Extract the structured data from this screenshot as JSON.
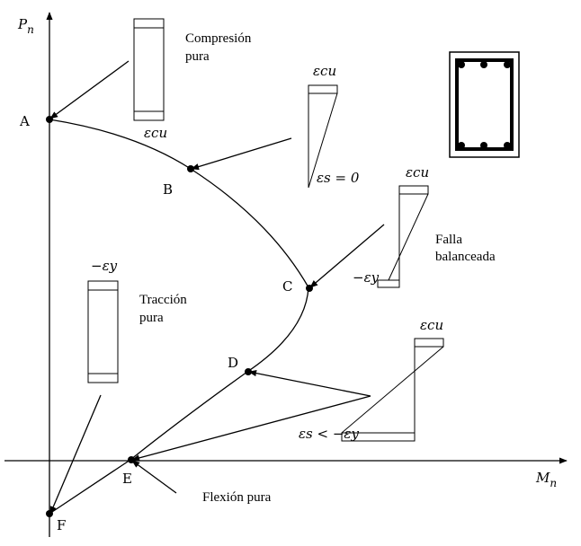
{
  "axes": {
    "y_label": "P",
    "y_sub": "n",
    "x_label": "M",
    "x_sub": "n"
  },
  "points": {
    "A": "A",
    "B": "B",
    "C": "C",
    "D": "D",
    "E": "E",
    "F": "F"
  },
  "notes": {
    "compression_line1": "Compresión",
    "compression_line2": "pura",
    "balanced_line1": "Falla",
    "balanced_line2": "balanceada",
    "tension_line1": "Tracción",
    "tension_line2": "pura",
    "flexure": "Flexión pura"
  },
  "strain_labels": {
    "eps_cu_compression": "εcu",
    "eps_cu_b": "εcu",
    "eps_s_zero": "εs = 0",
    "eps_cu_c": "εcu",
    "neg_eps_y_c": "−εy",
    "eps_cu_d": "εcu",
    "eps_s_less": "εs < −εy",
    "neg_eps_y_tension": "−εy"
  }
}
